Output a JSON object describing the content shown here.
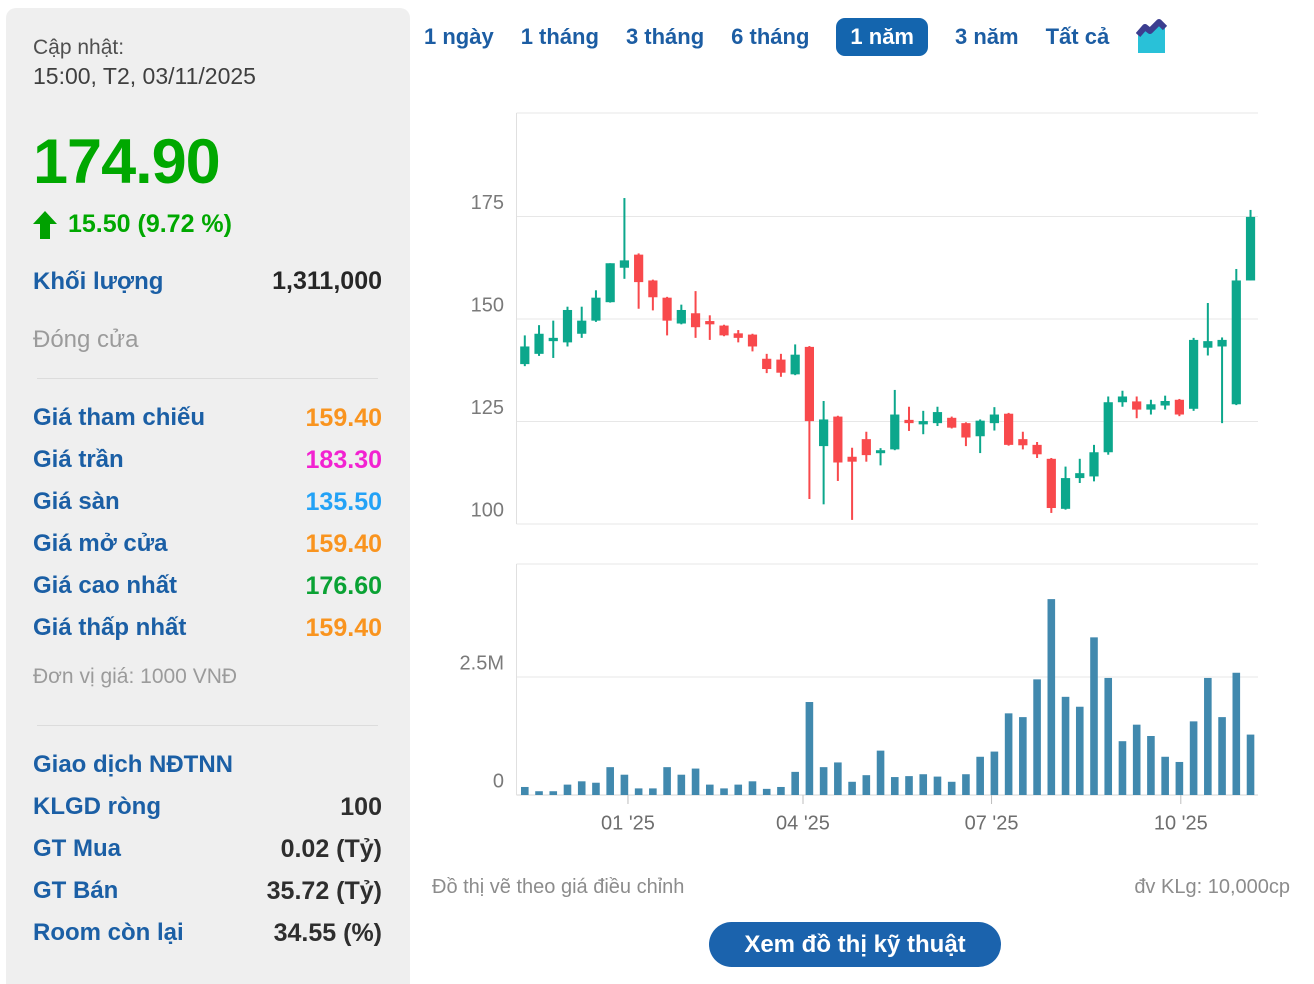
{
  "colors": {
    "up_green": "#0ca78c",
    "down_red": "#f8494c",
    "volume_blue": "#4189ae",
    "price_green": "#00a800",
    "label_blue": "#1b5fa5",
    "tab_blue": "#1c5da3",
    "tab_active_bg": "#1465ae",
    "button_bg": "#1b63ad",
    "ref_orange": "#f9941f",
    "ceiling_magenta": "#f222d1",
    "floor_blue": "#23a2f6",
    "high_green": "#0aa234"
  },
  "sidebar": {
    "updated_label": "Cập nhật:",
    "updated_time": "15:00, T2, 03/11/2025",
    "price": "174.90",
    "price_color": "#00a800",
    "change": "15.50 (9.72 %)",
    "volume_label": "Khối lượng",
    "volume_value": "1,311,000",
    "close_label": "Đóng cửa",
    "price_rows": [
      {
        "label": "Giá tham chiếu",
        "value": "159.40",
        "color": "#f9941f"
      },
      {
        "label": "Giá trần",
        "value": "183.30",
        "color": "#f222d1"
      },
      {
        "label": "Giá sàn",
        "value": "135.50",
        "color": "#23a2f6"
      },
      {
        "label": "Giá mở cửa",
        "value": "159.40",
        "color": "#f9941f"
      },
      {
        "label": "Giá cao nhất",
        "value": "176.60",
        "color": "#0aa234"
      },
      {
        "label": "Giá thấp nhất",
        "value": "159.40",
        "color": "#f9941f"
      }
    ],
    "price_unit_note": "Đơn vị giá: 1000 VNĐ",
    "foreign_title": "Giao dịch NĐTNN",
    "foreign_rows": [
      {
        "label": "KLGD ròng",
        "value": "100"
      },
      {
        "label": "GT Mua",
        "value": "0.02 (Tỷ)"
      },
      {
        "label": "GT Bán",
        "value": "35.72 (Tỷ)"
      },
      {
        "label": "Room còn lại",
        "value": "34.55 (%)"
      }
    ]
  },
  "tabs": {
    "items": [
      {
        "label": "1 ngày",
        "active": false
      },
      {
        "label": "1 tháng",
        "active": false
      },
      {
        "label": "3 tháng",
        "active": false
      },
      {
        "label": "6 tháng",
        "active": false
      },
      {
        "label": "1 năm",
        "active": true
      },
      {
        "label": "3 năm",
        "active": false
      },
      {
        "label": "Tất cả",
        "active": false
      }
    ],
    "icon": "area-chart-icon",
    "icon_line_color": "#3c3e90",
    "icon_fill_color": "#29c1d8"
  },
  "main": {
    "footnote_left": "Đồ thị vẽ theo giá điều chỉnh",
    "footnote_right": "đv KLg: 10,000cp",
    "button_label": "Xem đồ thị kỹ thuật"
  },
  "chart_data": {
    "type": "candlestick+volume",
    "title": "",
    "price_axis": {
      "ticks": [
        175,
        150,
        125,
        100
      ],
      "min": 100,
      "max": 180
    },
    "volume_axis": {
      "ticks": [
        {
          "label": "2.5M",
          "value": 2.5
        },
        {
          "label": "0",
          "value": 0
        }
      ],
      "unit_note": "đv KLg: 10,000cp"
    },
    "x_labels": [
      "01 '25",
      "04 '25",
      "07 '25",
      "10 '25"
    ],
    "x_tick_weeks": [
      7.25,
      19.55,
      32.8,
      46.1
    ],
    "grid": true,
    "candles_ohlc": [
      [
        139.0,
        146.0,
        138.5,
        143.3
      ],
      [
        141.5,
        148.5,
        141.0,
        146.4
      ],
      [
        144.6,
        149.6,
        140.5,
        145.4
      ],
      [
        144.3,
        153.0,
        143.3,
        152.2
      ],
      [
        146.4,
        153.0,
        145.4,
        149.6
      ],
      [
        149.6,
        157.0,
        149.3,
        155.2
      ],
      [
        154.1,
        163.6,
        154.0,
        163.6
      ],
      [
        162.5,
        179.5,
        159.8,
        164.3
      ],
      [
        165.7,
        166.0,
        152.5,
        159.0
      ],
      [
        159.4,
        159.6,
        152.1,
        155.3
      ],
      [
        155.2,
        155.4,
        146.0,
        149.6
      ],
      [
        148.9,
        153.5,
        148.7,
        152.2
      ],
      [
        151.4,
        156.8,
        145.4,
        148.0
      ],
      [
        149.5,
        150.9,
        144.9,
        148.7
      ],
      [
        148.4,
        148.6,
        145.8,
        146.0
      ],
      [
        146.5,
        147.3,
        144.3,
        145.4
      ],
      [
        146.2,
        146.4,
        142.1,
        143.3
      ],
      [
        140.3,
        141.5,
        136.8,
        137.8
      ],
      [
        140.1,
        141.5,
        135.9,
        136.9
      ],
      [
        136.5,
        143.8,
        136.3,
        141.3
      ],
      [
        143.2,
        143.4,
        106.1,
        125.1
      ],
      [
        119.0,
        130.0,
        104.8,
        125.5
      ],
      [
        126.2,
        126.4,
        110.5,
        115.0
      ],
      [
        116.4,
        118.6,
        101.0,
        115.2
      ],
      [
        120.7,
        122.5,
        115.2,
        116.8
      ],
      [
        117.5,
        118.5,
        114.3,
        118.0
      ],
      [
        118.2,
        132.7,
        118.0,
        126.7
      ],
      [
        125.4,
        128.6,
        122.7,
        124.6
      ],
      [
        124.3,
        127.6,
        121.9,
        125.1
      ],
      [
        124.6,
        128.6,
        123.9,
        127.3
      ],
      [
        125.9,
        126.2,
        123.3,
        123.5
      ],
      [
        124.6,
        124.8,
        119.0,
        121.1
      ],
      [
        121.4,
        125.5,
        117.3,
        125.2
      ],
      [
        124.6,
        128.5,
        122.8,
        126.7
      ],
      [
        126.9,
        127.1,
        119.1,
        119.3
      ],
      [
        120.7,
        122.5,
        118.2,
        119.2
      ],
      [
        119.3,
        120.0,
        116.1,
        117.0
      ],
      [
        115.9,
        116.1,
        102.7,
        103.9
      ],
      [
        103.7,
        114.0,
        103.5,
        111.2
      ],
      [
        111.2,
        115.9,
        110.0,
        112.4
      ],
      [
        111.6,
        119.3,
        110.4,
        117.5
      ],
      [
        117.5,
        131.1,
        116.9,
        129.7
      ],
      [
        129.7,
        132.5,
        128.6,
        131.1
      ],
      [
        129.9,
        131.1,
        125.8,
        127.9
      ],
      [
        127.9,
        130.3,
        126.7,
        129.2
      ],
      [
        128.9,
        131.3,
        127.9,
        130.0
      ],
      [
        130.3,
        130.5,
        126.3,
        126.7
      ],
      [
        128.1,
        145.4,
        127.6,
        144.9
      ],
      [
        143.0,
        153.9,
        141.1,
        144.6
      ],
      [
        143.3,
        145.5,
        124.6,
        144.9
      ],
      [
        129.2,
        162.2,
        129.0,
        159.4
      ],
      [
        159.4,
        176.6,
        159.4,
        174.9
      ]
    ],
    "volumes_m": [
      0.17,
      0.08,
      0.08,
      0.22,
      0.29,
      0.26,
      0.59,
      0.43,
      0.14,
      0.14,
      0.59,
      0.43,
      0.56,
      0.22,
      0.14,
      0.22,
      0.29,
      0.13,
      0.17,
      0.49,
      1.97,
      0.59,
      0.69,
      0.28,
      0.42,
      0.94,
      0.38,
      0.4,
      0.44,
      0.39,
      0.28,
      0.44,
      0.81,
      0.92,
      1.73,
      1.65,
      2.45,
      4.15,
      2.08,
      1.87,
      3.34,
      2.48,
      1.14,
      1.49,
      1.25,
      0.81,
      0.7,
      1.56,
      2.48,
      1.65,
      2.59,
      1.28
    ]
  }
}
